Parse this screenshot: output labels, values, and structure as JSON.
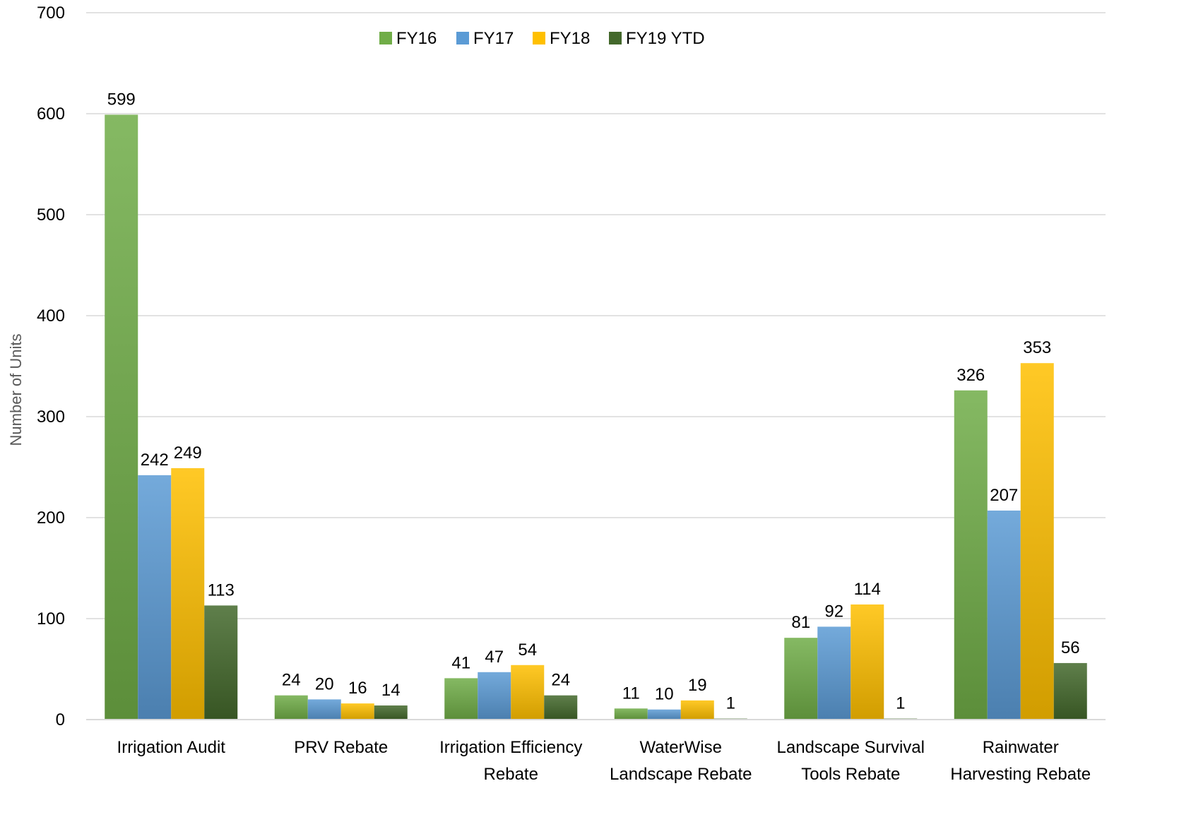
{
  "chart_data": {
    "type": "bar",
    "title": "",
    "xlabel": "",
    "ylabel": "Number of Units",
    "ylim": [
      0,
      700
    ],
    "yticks": [
      0,
      100,
      200,
      300,
      400,
      500,
      600,
      700
    ],
    "grid": true,
    "legend_position": "top",
    "categories": [
      [
        "Irrigation Audit"
      ],
      [
        "PRV Rebate"
      ],
      [
        "Irrigation Efficiency",
        "Rebate"
      ],
      [
        "WaterWise",
        "Landscape Rebate"
      ],
      [
        "Landscape Survival",
        "Tools Rebate"
      ],
      [
        "Rainwater",
        "Harvesting Rebate"
      ]
    ],
    "series": [
      {
        "name": "FY16",
        "color": "#70AD47",
        "values": [
          599,
          24,
          41,
          11,
          81,
          326
        ]
      },
      {
        "name": "FY17",
        "color": "#5B9BD5",
        "values": [
          242,
          20,
          47,
          10,
          92,
          207
        ]
      },
      {
        "name": "FY18",
        "color": "#FFC000",
        "values": [
          249,
          16,
          54,
          19,
          114,
          353
        ]
      },
      {
        "name": "FY19 YTD",
        "color": "#43682B",
        "values": [
          113,
          14,
          24,
          1,
          1,
          56
        ]
      }
    ]
  }
}
